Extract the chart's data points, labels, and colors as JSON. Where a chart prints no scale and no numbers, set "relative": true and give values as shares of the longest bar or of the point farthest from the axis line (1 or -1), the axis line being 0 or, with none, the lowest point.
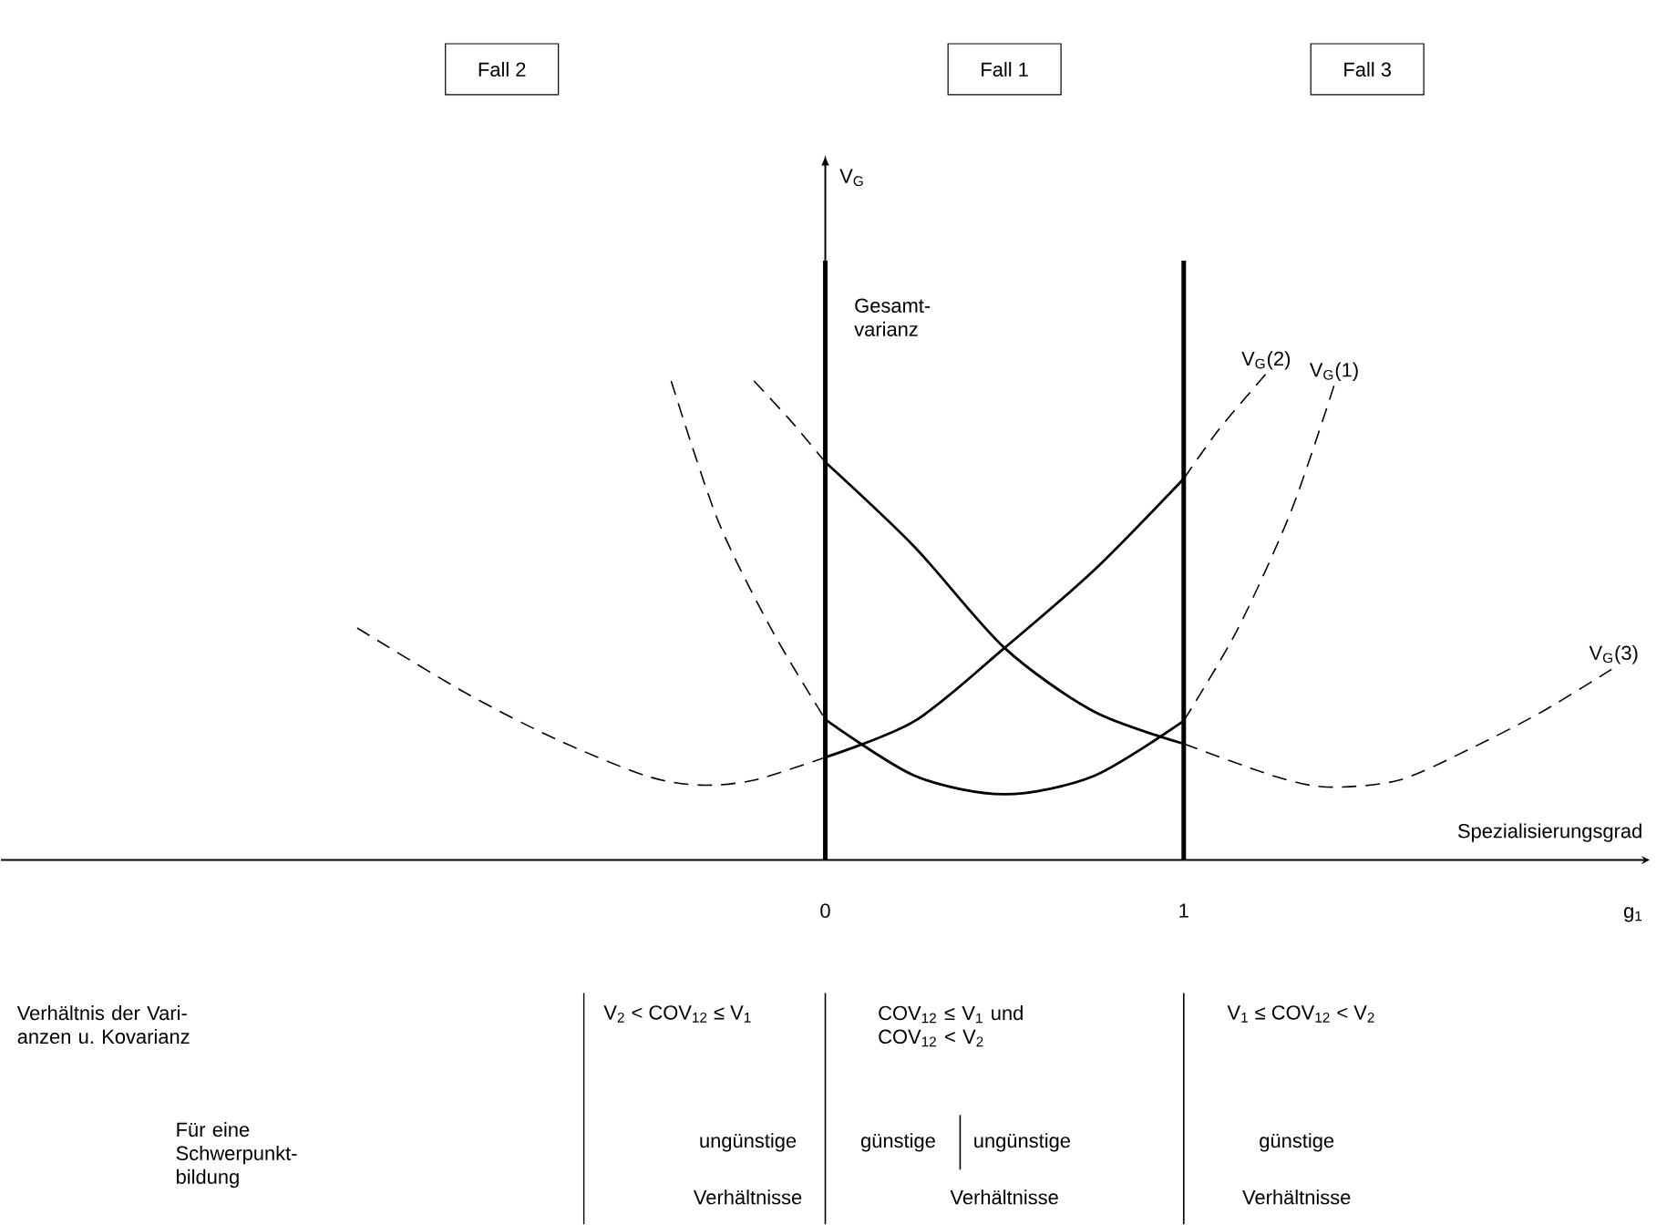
{
  "chart_data": {
    "type": "line",
    "relative": true,
    "xlim": [
      -2.3,
      2.3
    ],
    "xticks": [
      0,
      1
    ],
    "xlabel": "g$_{1}$",
    "series": [
      {
        "color": "#000000",
        "line_style": "dashed",
        "x": [
          -0.199,
          -0.1,
          0
        ],
        "values": [
          0.985,
          0.906,
          0.818
        ]
      },
      {
        "color": "#000000",
        "line_style": "solid",
        "x": [
          0,
          0.25,
          0.5,
          0.75,
          1
        ],
        "values": [
          0.818,
          0.643,
          0.436,
          0.305,
          0.239
        ]
      },
      {
        "name": "V$_{G}$(3)",
        "color": "#000000",
        "line_style": "dashed",
        "x": [
          1,
          1.25,
          1.4,
          1.6,
          1.8,
          2.0,
          2.2
        ],
        "values": [
          0.239,
          0.173,
          0.15,
          0.164,
          0.229,
          0.305,
          0.395
        ]
      },
      {
        "color": "#000000",
        "line_style": "dashed",
        "x": [
          -1.306,
          -1.0,
          -0.75,
          -0.5,
          -0.35,
          -0.2,
          0
        ],
        "values": [
          0.477,
          0.342,
          0.248,
          0.173,
          0.154,
          0.164,
          0.211
        ]
      },
      {
        "color": "#000000",
        "line_style": "solid",
        "x": [
          0,
          0.25,
          0.5,
          0.75,
          1
        ],
        "values": [
          0.211,
          0.286,
          0.436,
          0.596,
          0.784
        ]
      },
      {
        "name": "V$_{G}$(2)",
        "color": "#000000",
        "line_style": "dashed",
        "x": [
          1,
          1.1,
          1.23
        ],
        "values": [
          0.784,
          0.887,
          1
        ]
      },
      {
        "color": "#000000",
        "line_style": "dashed",
        "x": [
          -0.43,
          -0.3,
          -0.15,
          0
        ],
        "values": [
          0.985,
          0.699,
          0.474,
          0.289
        ]
      },
      {
        "color": "#000000",
        "line_style": "solid",
        "x": [
          0,
          0.25,
          0.5,
          0.75,
          1
        ],
        "values": [
          0.289,
          0.173,
          0.135,
          0.173,
          0.286
        ]
      },
      {
        "name": "V$_{G}$(1)",
        "color": "#000000",
        "line_style": "dashed",
        "x": [
          1,
          1.15,
          1.3,
          1.42
        ],
        "values": [
          0.286,
          0.474,
          0.718,
          0.977
        ]
      }
    ],
    "ref_lines": [
      {
        "axis": "x",
        "value": 0
      },
      {
        "axis": "x",
        "value": 1
      }
    ],
    "annotations": [
      "V$_{G}$",
      "Gesamt- varianz",
      "Spezialisierungsgrad",
      "Fall 2",
      "Fall 1",
      "Fall 3",
      "Verhältnis der Vari- anzen u. Kovarianz",
      "V$_{2}$ < COV$_{12}$ ≤ V$_{1}$",
      "COV$_{12}$ ≤ V$_{1}$ und COV$_{12}$ < V$_{2}$",
      "V$_{1}$ ≤ COV$_{12}$ < V$_{2}$",
      "Für eine Schwerpunkt- bildung",
      "ungünstige",
      "günstige",
      "ungünstige",
      "günstige",
      "Verhältnisse",
      "Verhältnisse",
      "Verhältnisse"
    ]
  }
}
